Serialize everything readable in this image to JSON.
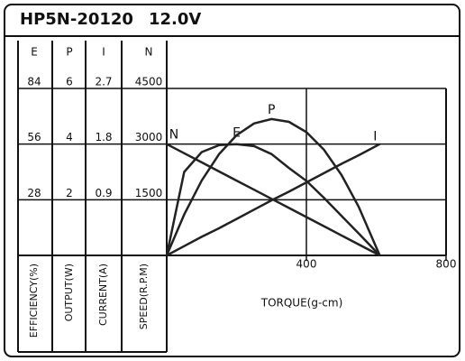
{
  "chart_data": {
    "type": "line",
    "title": "HP5N-20120",
    "subtitle": "12.0V",
    "xlabel": "TORQUE(g-cm)",
    "xlim": [
      0,
      800
    ],
    "xticks": [
      400,
      800
    ],
    "axes": [
      {
        "name": "E",
        "label": "EFFICIENCY(%)",
        "ylim": [
          0,
          84
        ],
        "yticks": [
          28,
          56,
          84
        ]
      },
      {
        "name": "P",
        "label": "OUTPUT(W)",
        "ylim": [
          0,
          6
        ],
        "yticks": [
          2,
          4,
          6
        ]
      },
      {
        "name": "I",
        "label": "CURRENT(A)",
        "ylim": [
          0,
          2.7
        ],
        "yticks": [
          0.9,
          1.8,
          2.7
        ]
      },
      {
        "name": "N",
        "label": "SPEED(R.P.M)",
        "ylim": [
          0,
          4500
        ],
        "yticks": [
          1500,
          3000,
          4500
        ]
      }
    ],
    "x": [
      0,
      50,
      100,
      150,
      200,
      250,
      300,
      350,
      400,
      450,
      500,
      550,
      610
    ],
    "series": [
      {
        "name": "N",
        "axis": 3,
        "color": "#222222",
        "values": [
          3000,
          2754,
          2508,
          2262,
          2016,
          1770,
          1525,
          1279,
          1033,
          787,
          541,
          295,
          0
        ]
      },
      {
        "name": "E",
        "axis": 0,
        "color": "#222222",
        "values": [
          0,
          42,
          52,
          55.5,
          56,
          55,
          51,
          44,
          37.5,
          29,
          20,
          11,
          0
        ]
      },
      {
        "name": "P",
        "axis": 1,
        "color": "#222222",
        "values": [
          0,
          1.47,
          2.69,
          3.64,
          4.32,
          4.74,
          4.9,
          4.8,
          4.43,
          3.8,
          2.9,
          1.74,
          0
        ]
      },
      {
        "name": "I",
        "axis": 2,
        "color": "#222222",
        "values": [
          0,
          0.15,
          0.3,
          0.44,
          0.59,
          0.74,
          0.89,
          1.03,
          1.18,
          1.33,
          1.48,
          1.62,
          1.8
        ]
      }
    ]
  }
}
